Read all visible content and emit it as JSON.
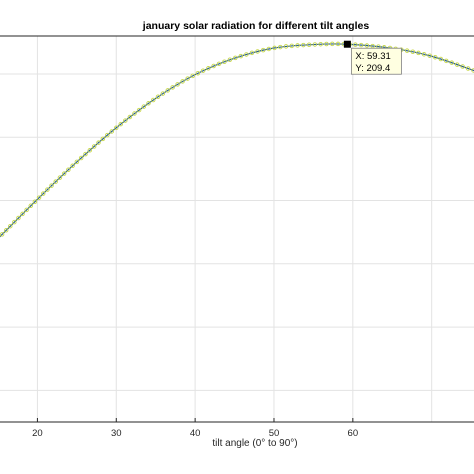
{
  "chart_data": {
    "type": "line",
    "title": "january solar radiation for different tilt angles",
    "xlabel": "tilt angle (0° to 90°)",
    "ylabel": "",
    "xlim": [
      15,
      76
    ],
    "ylim": [
      90,
      212
    ],
    "x_ticks": [
      20,
      30,
      40,
      50,
      60
    ],
    "grid": true,
    "series": [
      {
        "line_color": "#2a5f8f",
        "marker_color": "#c8d84a",
        "marker": "circle",
        "x": [
          15,
          20,
          25,
          30,
          35,
          40,
          45,
          50,
          55,
          59.31,
          65,
          70,
          76
        ],
        "y": [
          148.0,
          160.4,
          172.2,
          183.0,
          192.3,
          199.8,
          205.0,
          208.2,
          209.3,
          209.4,
          208.1,
          205.6,
          200.5
        ]
      }
    ],
    "datatip": {
      "x": 59.31,
      "y": 209.4,
      "x_text": "X: 59.31",
      "y_text": "Y: 209.4"
    }
  }
}
